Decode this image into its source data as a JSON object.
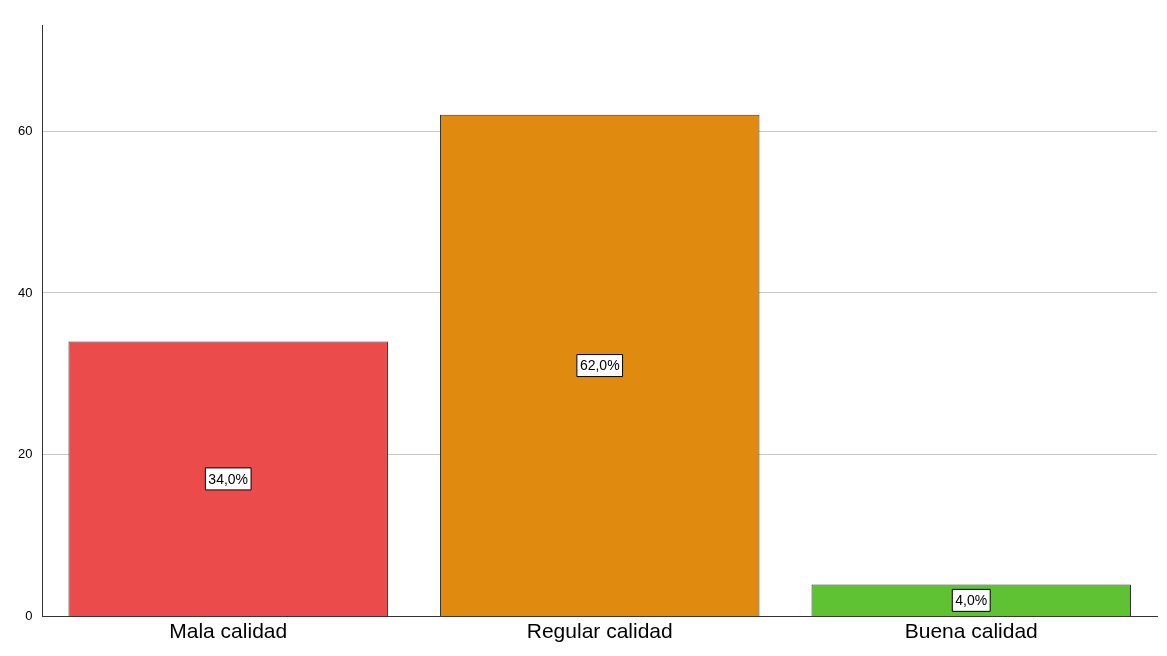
{
  "chart_data": {
    "type": "bar",
    "categories": [
      "Mala calidad",
      "Regular calidad",
      "Buena calidad"
    ],
    "values": [
      34,
      62,
      4
    ],
    "colors": [
      "#ec4b4b",
      "#e08a10",
      "#5ec232"
    ],
    "value_labels": [
      "34,0%",
      "62,0%",
      "4,0%"
    ],
    "ylim": [
      0,
      73
    ],
    "yticks": [
      0,
      20,
      40,
      60
    ],
    "grid": "y",
    "legend": false
  }
}
